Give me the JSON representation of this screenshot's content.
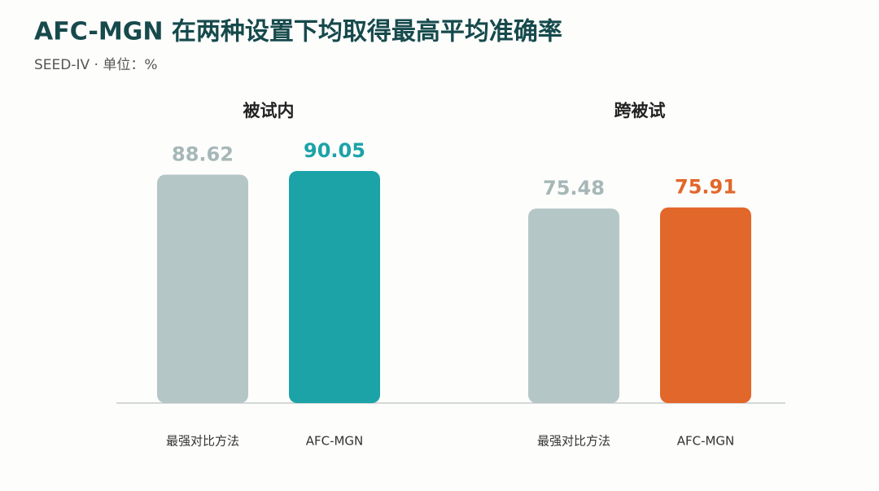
{
  "title": "AFC-MGN 在两种设置下均取得最高平均准确率",
  "subtitle": "SEED-IV · 单位：%",
  "chart_data": [
    {
      "type": "bar",
      "title": "被试内",
      "categories": [
        "最强对比方法",
        "AFC-MGN"
      ],
      "values": [
        88.62,
        90.05
      ],
      "colors": [
        "#b5c6c6",
        "#1ba3a8"
      ]
    },
    {
      "type": "bar",
      "title": "跨被试",
      "categories": [
        "最强对比方法",
        "AFC-MGN"
      ],
      "values": [
        75.48,
        75.91
      ],
      "colors": [
        "#b5c6c6",
        "#e2672a"
      ]
    }
  ]
}
